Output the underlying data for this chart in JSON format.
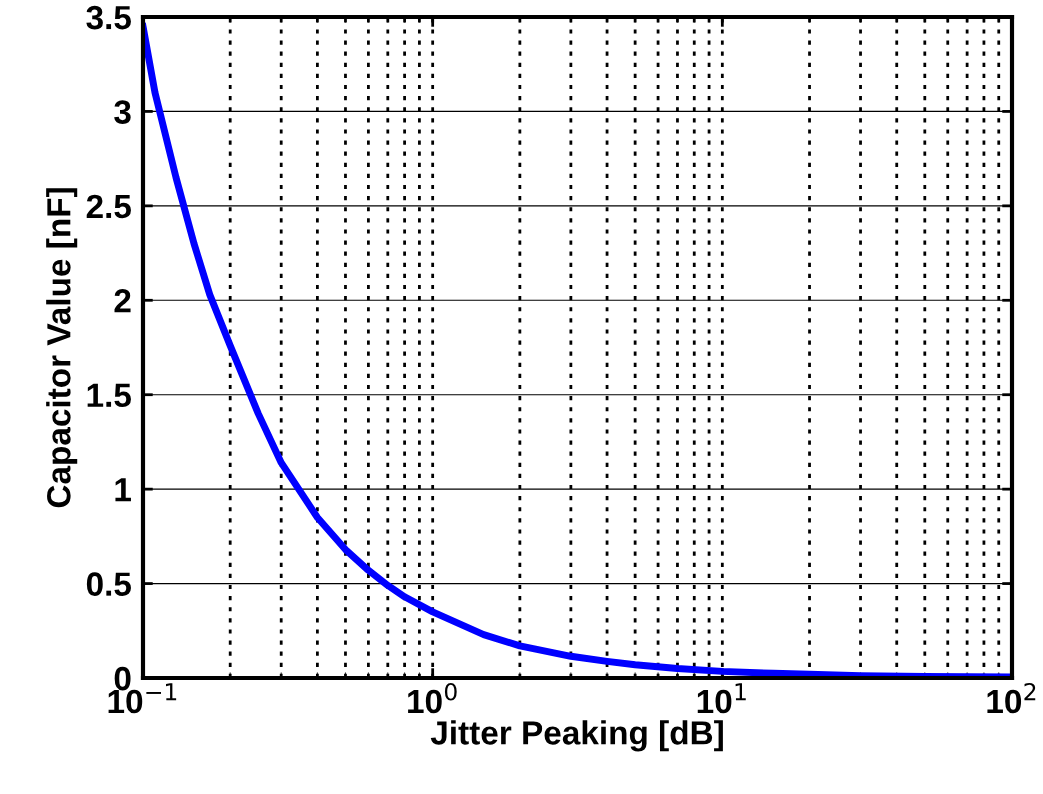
{
  "chart_data": {
    "type": "line",
    "xlabel": "Jitter Peaking [dB]",
    "ylabel": "Capacitor Value [nF]",
    "log": "x",
    "x": [
      0.1,
      0.11,
      0.13,
      0.15,
      0.17,
      0.2,
      0.25,
      0.3,
      0.4,
      0.5,
      0.6,
      0.7,
      0.8,
      1,
      1.5,
      2,
      3,
      4,
      5,
      7,
      10,
      15,
      20,
      30,
      50,
      100
    ],
    "series": [
      {
        "color": "#0000ff",
        "values": [
          3.45,
          3.1,
          2.65,
          2.3,
          2.03,
          1.76,
          1.4,
          1.14,
          0.85,
          0.68,
          0.57,
          0.49,
          0.43,
          0.35,
          0.23,
          0.17,
          0.115,
          0.088,
          0.07,
          0.05,
          0.035,
          0.025,
          0.02,
          0.012,
          0.008,
          0.005
        ]
      }
    ],
    "xlim": [
      0.1,
      100
    ],
    "xticks": [
      {
        "value": 0.1,
        "label": "10$^{−1}$"
      },
      {
        "value": 1,
        "label": "10$^{0}$"
      },
      {
        "value": 10,
        "label": "10$^{1}$"
      },
      {
        "value": 100,
        "label": "10$^{2}$"
      }
    ],
    "ylim": [
      0,
      3.5
    ],
    "yticks": [
      0,
      0.5,
      1,
      1.5,
      2,
      2.5,
      3,
      3.5
    ],
    "grid": true,
    "line_style": "solid",
    "marker": "none"
  }
}
